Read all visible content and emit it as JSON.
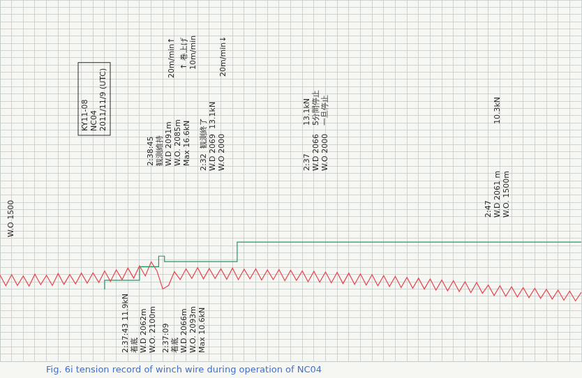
{
  "chart_data": {
    "type": "line",
    "title": "Fig. 6i tension record of winch wire during operation of NC04",
    "series": [
      {
        "color": "#e8434c",
        "marker": "none",
        "line_style": "solid",
        "x": [
          0,
          1,
          2,
          3,
          4,
          5,
          6,
          7,
          8,
          9,
          10,
          11,
          12,
          13,
          14,
          15,
          16,
          17,
          18,
          19,
          20,
          21,
          22,
          23,
          24,
          25,
          26,
          27,
          28,
          29,
          30,
          31,
          32,
          33,
          34,
          35,
          36,
          37,
          38,
          39,
          40,
          41,
          42,
          43,
          44,
          45,
          46,
          47,
          48,
          49,
          50,
          51,
          52,
          53,
          54,
          55,
          56,
          57,
          58,
          59,
          60,
          61,
          62,
          63,
          64,
          65,
          66,
          67,
          68,
          69,
          70,
          71,
          72,
          73,
          74,
          75,
          76,
          77,
          78,
          79,
          80,
          81,
          82,
          83,
          84,
          85,
          86,
          87,
          88,
          89,
          90,
          91,
          92,
          93,
          94,
          95,
          96,
          97,
          98,
          99,
          100
        ],
        "values": [
          23.9,
          20.9,
          24.0,
          21.0,
          23.6,
          20.8,
          24.1,
          21.2,
          23.8,
          21.0,
          24.3,
          21.3,
          24.0,
          21.4,
          24.4,
          21.6,
          24.5,
          21.8,
          25.0,
          22.1,
          25.3,
          22.6,
          25.8,
          23.0,
          26.4,
          23.6,
          27.5,
          25.0,
          20.0,
          21.0,
          24.8,
          22.6,
          25.6,
          22.9,
          25.9,
          22.8,
          25.7,
          22.9,
          25.6,
          22.7,
          25.8,
          22.6,
          25.5,
          22.8,
          25.6,
          22.5,
          25.3,
          22.6,
          25.4,
          22.3,
          25.2,
          22.4,
          25.0,
          22.0,
          24.9,
          21.9,
          24.7,
          21.7,
          24.6,
          21.5,
          24.4,
          21.3,
          24.2,
          21.1,
          24.0,
          20.9,
          23.7,
          20.7,
          23.5,
          20.4,
          23.2,
          20.2,
          23.0,
          20.0,
          22.8,
          19.7,
          22.5,
          19.5,
          22.3,
          19.3,
          22.0,
          19.0,
          21.8,
          18.8,
          21.1,
          18.2,
          20.9,
          18.0,
          20.6,
          17.8,
          20.4,
          17.6,
          20.2,
          17.4,
          19.9,
          17.2,
          19.7,
          16.9,
          19.4,
          16.7,
          19.1
        ]
      },
      {
        "color": "#1f9a6b",
        "marker": "none",
        "line_style": "stepped",
        "x": [
          18,
          24,
          27.3,
          28.3,
          40.8,
          51.6,
          100
        ],
        "values": [
          19.9,
          22.4,
          26.2,
          29.1,
          27.6,
          33.0,
          33.0
        ]
      }
    ],
    "xlim": [
      0,
      100
    ],
    "ylim": [
      0,
      100
    ],
    "xticks": [
      0,
      2,
      4,
      6,
      8,
      10,
      12,
      14,
      16,
      18,
      20,
      22,
      24,
      26,
      28,
      30,
      32,
      34,
      36,
      38,
      40,
      42,
      44,
      46,
      48,
      50,
      52,
      54,
      56,
      58,
      60,
      62,
      64,
      66,
      68,
      70,
      72,
      74,
      76,
      78,
      80,
      82,
      84,
      86,
      88,
      90,
      92,
      94,
      96,
      98,
      100
    ],
    "yticks": [
      0,
      2,
      4,
      6,
      8,
      10,
      12,
      14,
      16,
      18,
      20,
      22,
      24,
      26,
      28,
      30,
      32,
      34,
      36,
      38,
      40,
      42,
      44,
      46,
      48,
      50,
      52,
      54,
      56,
      58,
      60,
      62,
      64,
      66,
      68,
      70,
      72,
      74,
      76,
      78,
      80,
      82,
      84,
      86,
      88,
      90,
      92,
      94,
      96,
      98,
      100
    ],
    "grid": true,
    "tick_labels": false,
    "annotations": [
      [
        "KY11-08",
        "NC04",
        "2011/11/9 (UTC)"
      ],
      [
        "W.O 1500"
      ],
      [
        "2:38:45",
        "観測維持",
        "W.D 2091m",
        "W.O. 2085m",
        "Max 16.6kN"
      ],
      [
        "20m/min↑"
      ],
      [
        "↑ 巻上げ",
        "10m/min"
      ],
      [
        "20m/min↓"
      ],
      [
        "2:32  観測終了",
        "W.D 2069  13.1kN",
        "W.O 2000"
      ],
      [
        "2:37",
        "W.D 2066",
        "W.O 2000"
      ],
      [
        "13.1kN",
        "5分間停止",
        "一旦停止"
      ],
      [
        "2:47",
        "W.D 2061 m",
        "W.O. 1500m"
      ],
      [
        "10.3kN"
      ],
      [
        "2:37:43 11.9kN",
        "着底",
        "W.D 2062m",
        "W.O. 2100m"
      ],
      [
        "2:37:09",
        "着底",
        "W.D 2066m",
        "W.O. 2093m",
        "Max 10.6kN"
      ]
    ]
  }
}
